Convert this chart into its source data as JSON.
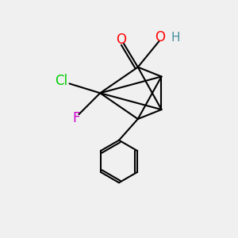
{
  "background_color": "#f0f0f0",
  "bond_color": "#000000",
  "bond_width": 1.5,
  "atom_colors": {
    "O": "#ff0000",
    "OH_O": "#ff0000",
    "H": "#4a8fa0",
    "Cl": "#00cc00",
    "F": "#cc00cc",
    "C": "#000000"
  },
  "font_size_atom": 11,
  "font_size_small": 9
}
